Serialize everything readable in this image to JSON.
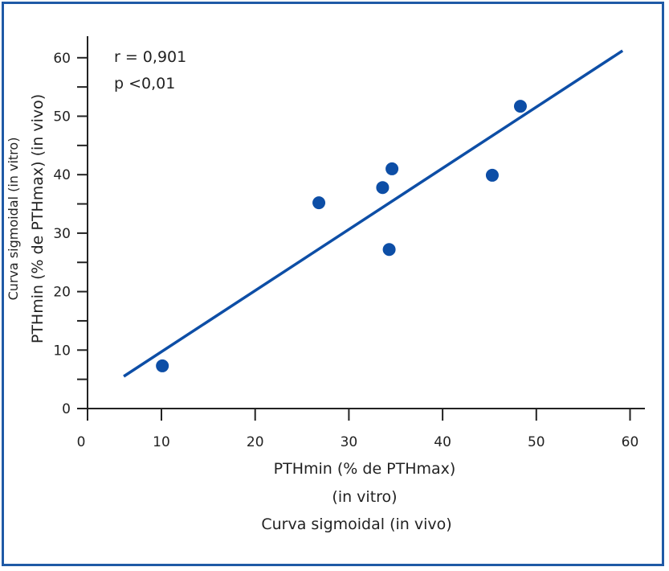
{
  "chart_data": {
    "type": "scatter",
    "xlabel": [
      "PTHmin (% de PTHmax)",
      "(in vitro)",
      "Curva sigmoidal (in vivo)"
    ],
    "ylabel": [
      "Curva sigmoidal (in vitro)",
      "PTHmin (% de PTHmax) (in vivo)"
    ],
    "xlim": [
      0,
      60
    ],
    "ylim": [
      0,
      60
    ],
    "xticks": [
      "0",
      "10",
      "20",
      "30",
      "40",
      "50",
      "60"
    ],
    "yticks": [
      "0",
      "10",
      "20",
      "30",
      "40",
      "50",
      "60"
    ],
    "points": [
      {
        "x": 10.1,
        "y": 7.3
      },
      {
        "x": 26.8,
        "y": 35.2
      },
      {
        "x": 33.6,
        "y": 37.8
      },
      {
        "x": 34.6,
        "y": 41.0
      },
      {
        "x": 34.3,
        "y": 27.2
      },
      {
        "x": 45.3,
        "y": 39.9
      },
      {
        "x": 48.3,
        "y": 51.7
      }
    ],
    "fit_line": {
      "x": [
        4.9,
        59.2
      ],
      "y": [
        5.5,
        61.2
      ]
    },
    "annotations": [
      "r = 0,901",
      "p <0,01"
    ],
    "grid": false,
    "color": "#0d4ea6"
  }
}
